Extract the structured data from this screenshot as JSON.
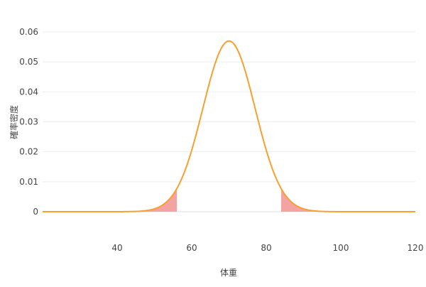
{
  "chart_data": {
    "type": "line",
    "title": "",
    "xlabel": "体重",
    "ylabel": "確率密度",
    "xlim": [
      20,
      120
    ],
    "ylim": [
      0,
      0.06
    ],
    "xticks": [
      40,
      60,
      80,
      100,
      120
    ],
    "xtick_labels": [
      "40",
      "60",
      "80",
      "100",
      "120"
    ],
    "yticks": [
      0,
      0.01,
      0.02,
      0.03,
      0.04,
      0.05,
      0.06
    ],
    "ytick_labels": [
      "0",
      "0.01",
      "0.02",
      "0.03",
      "0.04",
      "0.05",
      "0.06"
    ],
    "grid": true,
    "series": [
      {
        "distribution": "normal",
        "mean": 70,
        "sd": 7,
        "peak_y": 0.057,
        "color": "#f7a031"
      }
    ],
    "shaded_regions": [
      {
        "from": 20,
        "to": 56,
        "color": "#f4a3a3"
      },
      {
        "from": 84,
        "to": 120,
        "color": "#f4a3a3"
      }
    ]
  }
}
